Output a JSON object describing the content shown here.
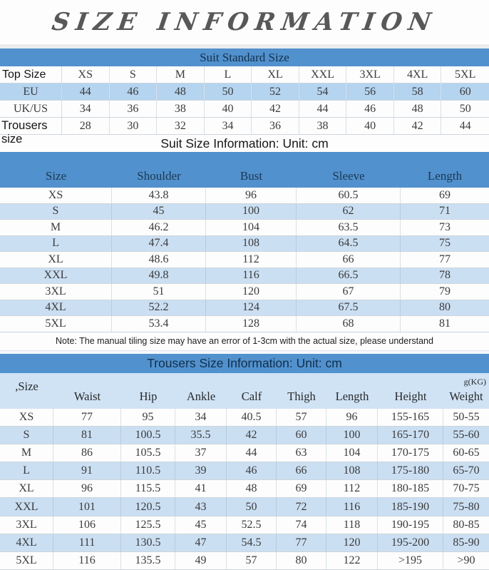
{
  "title": "SIZE INFORMATION",
  "colors": {
    "header_blue": "#5191cd",
    "stripe_blue": "#cbdff2",
    "eu_row_blue": "#b4d4ef",
    "trousers_header_blue": "#cfe3f5",
    "header_text_navy": "#14304b",
    "body_text": "#3b3b3b",
    "title_gray": "#585858"
  },
  "suit_standard": {
    "header": "Suit Standard Size",
    "rows": [
      {
        "label": "Top Size",
        "label_font": "sans",
        "highlight": false,
        "values": [
          "XS",
          "S",
          "M",
          "L",
          "XL",
          "XXL",
          "3XL",
          "4XL",
          "5XL"
        ]
      },
      {
        "label": "EU",
        "label_font": "serif",
        "highlight": true,
        "values": [
          "44",
          "46",
          "48",
          "50",
          "52",
          "54",
          "56",
          "58",
          "60"
        ]
      },
      {
        "label": "UK/US",
        "label_font": "serif",
        "highlight": false,
        "values": [
          "34",
          "36",
          "38",
          "40",
          "42",
          "44",
          "46",
          "48",
          "50"
        ]
      },
      {
        "label": "Trousers size",
        "label_font": "sans-overflow",
        "highlight": false,
        "values": [
          "28",
          "30",
          "32",
          "34",
          "36",
          "38",
          "40",
          "42",
          "44"
        ]
      }
    ]
  },
  "suit_size": {
    "heading": "Suit Size Information: Unit: cm",
    "columns": [
      "Size",
      "Shoulder",
      "Bust",
      "Sleeve",
      "Length"
    ],
    "rows": [
      [
        "XS",
        "43.8",
        "96",
        "60.5",
        "69"
      ],
      [
        "S",
        "45",
        "100",
        "62",
        "71"
      ],
      [
        "M",
        "46.2",
        "104",
        "63.5",
        "73"
      ],
      [
        "L",
        "47.4",
        "108",
        "64.5",
        "75"
      ],
      [
        "XL",
        "48.6",
        "112",
        "66",
        "77"
      ],
      [
        "XXL",
        "49.8",
        "116",
        "66.5",
        "78"
      ],
      [
        "3XL",
        "51",
        "120",
        "67",
        "79"
      ],
      [
        "4XL",
        "52.2",
        "124",
        "67.5",
        "80"
      ],
      [
        "5XL",
        "53.4",
        "128",
        "68",
        "81"
      ]
    ],
    "note": "Note: The manual tiling size may have an error of 1-3cm with the actual size, please understand"
  },
  "trousers_size": {
    "heading": "Trousers Size Information: Unit: cm",
    "weight_unit": "g(KG)",
    "columns": [
      ",Size",
      "Waist",
      "Hip",
      "Ankle",
      "Calf",
      "Thigh",
      "Length",
      "Height",
      "Weight"
    ],
    "rows": [
      [
        "XS",
        "77",
        "95",
        "34",
        "40.5",
        "57",
        "96",
        "155-165",
        "50-55"
      ],
      [
        "S",
        "81",
        "100.5",
        "35.5",
        "42",
        "60",
        "100",
        "165-170",
        "55-60"
      ],
      [
        "M",
        "86",
        "105.5",
        "37",
        "44",
        "63",
        "104",
        "170-175",
        "60-65"
      ],
      [
        "L",
        "91",
        "110.5",
        "39",
        "46",
        "66",
        "108",
        "175-180",
        "65-70"
      ],
      [
        "XL",
        "96",
        "115.5",
        "41",
        "48",
        "69",
        "112",
        "180-185",
        "70-75"
      ],
      [
        "XXL",
        "101",
        "120.5",
        "43",
        "50",
        "72",
        "116",
        "185-190",
        "75-80"
      ],
      [
        "3XL",
        "106",
        "125.5",
        "45",
        "52.5",
        "74",
        "118",
        "190-195",
        "80-85"
      ],
      [
        "4XL",
        "111",
        "130.5",
        "47",
        "54.5",
        "77",
        "120",
        "195-200",
        "85-90"
      ],
      [
        "5XL",
        "116",
        "135.5",
        "49",
        "57",
        "80",
        "122",
        ">195",
        ">90"
      ]
    ]
  }
}
